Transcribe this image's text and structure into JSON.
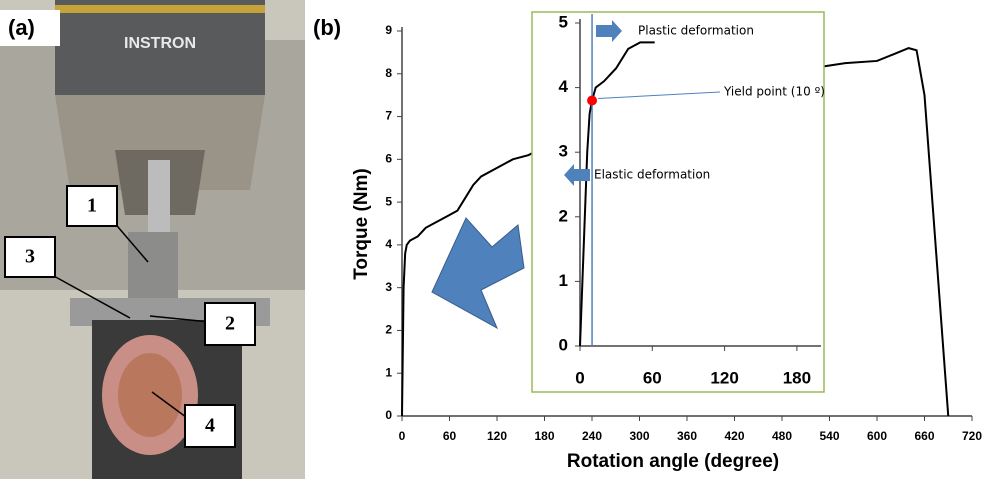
{
  "panels": [
    "(a)",
    "(b)"
  ],
  "photo": {
    "brand": "INSTRON",
    "labels": [
      "1",
      "2",
      "3",
      "4"
    ]
  },
  "chart_data": [
    {
      "type": "line",
      "ylabel": "Torque (Nm)",
      "xlabel": "Rotation angle (degree)",
      "x": [
        0,
        2,
        4,
        6,
        10,
        20,
        30,
        40,
        50,
        60,
        70,
        80,
        90,
        100,
        120,
        140,
        160,
        170,
        535,
        560,
        600,
        620,
        640,
        650,
        660,
        670,
        680,
        690
      ],
      "values": [
        0,
        3,
        3.8,
        4.0,
        4.1,
        4.2,
        4.4,
        4.5,
        4.6,
        4.7,
        4.8,
        5.1,
        5.4,
        5.6,
        5.8,
        6.0,
        6.1,
        6.2,
        8.18,
        8.25,
        8.3,
        8.45,
        8.6,
        8.55,
        7.5,
        5,
        2.5,
        0
      ],
      "color": "#000000",
      "xlim": [
        0,
        720
      ],
      "xticks": [
        0,
        60,
        120,
        180,
        240,
        300,
        360,
        420,
        480,
        540,
        600,
        660,
        720
      ],
      "ylim": [
        0,
        9
      ],
      "yticks": [
        0,
        1,
        2,
        3,
        4,
        5,
        6,
        7,
        8,
        9
      ]
    },
    {
      "type": "line",
      "x": [
        0,
        2,
        4,
        6,
        8,
        10,
        13,
        20,
        30,
        40,
        50,
        62
      ],
      "values": [
        0,
        1,
        2,
        3,
        3.6,
        3.8,
        4.0,
        4.1,
        4.3,
        4.6,
        4.7,
        4.7
      ],
      "color": "#000000",
      "xlim": [
        0,
        200
      ],
      "xticks": [
        0,
        60,
        120,
        180
      ],
      "ylim": [
        0,
        5
      ],
      "yticks": [
        0,
        1,
        2,
        3,
        4,
        5
      ],
      "yield_point": {
        "x": 10,
        "y": 3.8,
        "color": "#ff0000"
      },
      "annotations": [
        "Plastic deformation",
        "Yield point (10 º)",
        "Elastic deformation"
      ]
    }
  ]
}
